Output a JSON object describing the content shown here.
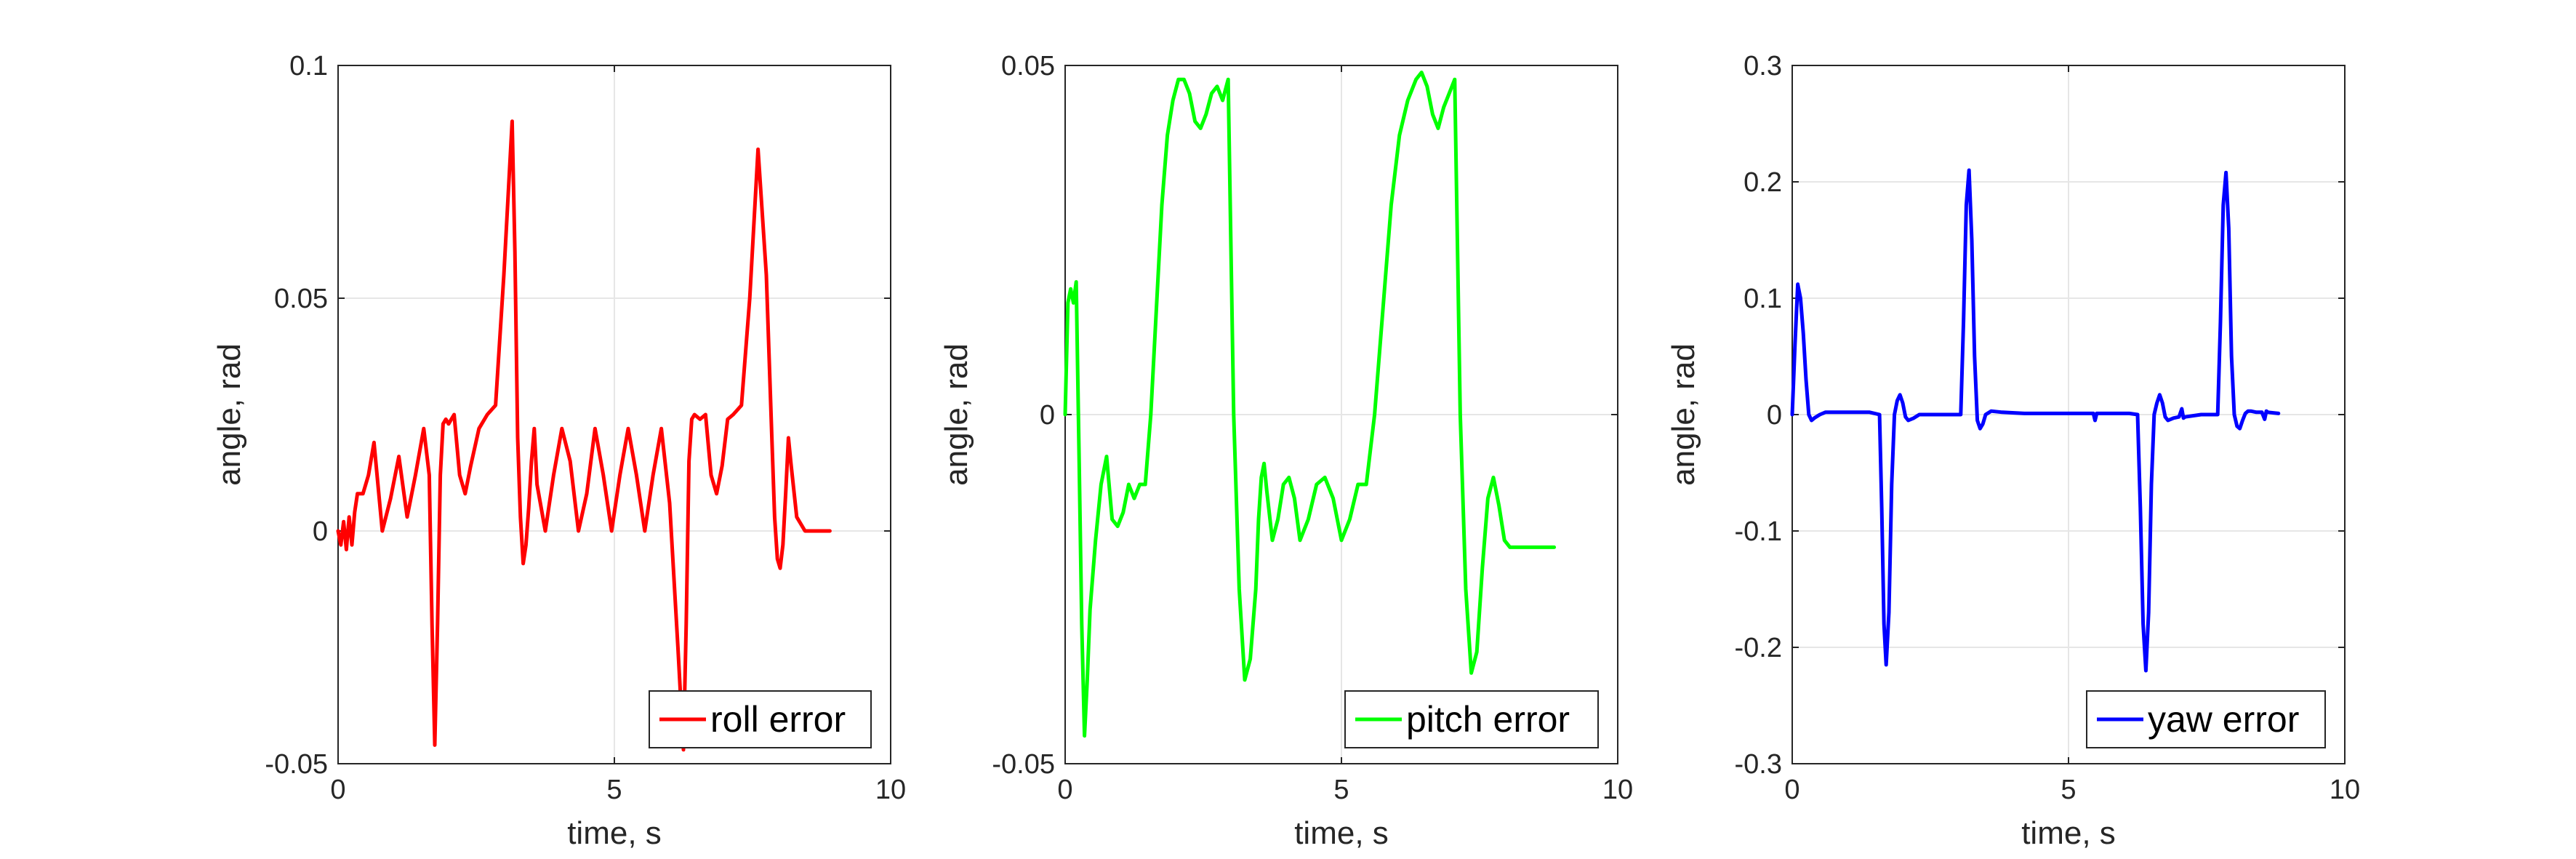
{
  "chart_data": [
    {
      "type": "line",
      "xlabel": "time, s",
      "ylabel": "angle, rad",
      "xlim": [
        0,
        10
      ],
      "ylim": [
        -0.05,
        0.1
      ],
      "xticks": [
        "0",
        "5",
        "10"
      ],
      "yticks": [
        "-0.05",
        "0",
        "0.05",
        "0.1"
      ],
      "ytick_values": [
        -0.05,
        0,
        0.05,
        0.1
      ],
      "grid": true,
      "legend_position": "bottom-right",
      "color": "#ff0000",
      "series": [
        {
          "name": "roll error",
          "x": [
            0,
            0.05,
            0.1,
            0.15,
            0.2,
            0.25,
            0.3,
            0.35,
            0.45,
            0.55,
            0.65,
            0.8,
            0.95,
            1.1,
            1.25,
            1.4,
            1.55,
            1.65,
            1.7,
            1.75,
            1.8,
            1.85,
            1.9,
            1.95,
            2.0,
            2.1,
            2.2,
            2.3,
            2.4,
            2.55,
            2.7,
            2.85,
            3.0,
            3.15,
            3.2,
            3.25,
            3.3,
            3.35,
            3.4,
            3.45,
            3.5,
            3.55,
            3.6,
            3.75,
            3.9,
            4.05,
            4.2,
            4.35,
            4.5,
            4.65,
            4.8,
            4.95,
            5.1,
            5.25,
            5.4,
            5.55,
            5.7,
            5.85,
            6.0,
            6.15,
            6.25,
            6.3,
            6.35,
            6.4,
            6.45,
            6.55,
            6.65,
            6.75,
            6.85,
            6.95,
            7.05,
            7.15,
            7.3,
            7.45,
            7.6,
            7.75,
            7.85,
            7.9,
            7.95,
            8.0,
            8.05,
            8.1,
            8.15,
            8.2,
            8.3,
            8.45,
            8.6,
            8.75,
            8.9
          ],
          "y": [
            0,
            -0.003,
            0.002,
            -0.004,
            0.003,
            -0.003,
            0.004,
            0.008,
            0.008,
            0.012,
            0.019,
            0.0,
            0.007,
            0.016,
            0.003,
            0.012,
            0.022,
            0.012,
            -0.02,
            -0.046,
            -0.02,
            0.012,
            0.023,
            0.024,
            0.023,
            0.025,
            0.012,
            0.008,
            0.014,
            0.022,
            0.025,
            0.027,
            0.055,
            0.088,
            0.06,
            0.02,
            0.003,
            -0.007,
            -0.003,
            0.005,
            0.015,
            0.022,
            0.01,
            0.0,
            0.012,
            0.022,
            0.015,
            0.0,
            0.008,
            0.022,
            0.012,
            0.0,
            0.012,
            0.022,
            0.012,
            0.0,
            0.012,
            0.022,
            0.006,
            -0.025,
            -0.047,
            -0.02,
            0.015,
            0.024,
            0.025,
            0.024,
            0.025,
            0.012,
            0.008,
            0.014,
            0.024,
            0.025,
            0.027,
            0.05,
            0.082,
            0.055,
            0.02,
            0.003,
            -0.006,
            -0.008,
            -0.003,
            0.008,
            0.02,
            0.014,
            0.003,
            0.0,
            0.0,
            0.0,
            0.0
          ]
        }
      ]
    },
    {
      "type": "line",
      "xlabel": "time, s",
      "ylabel": "angle, rad",
      "xlim": [
        0,
        10
      ],
      "ylim": [
        -0.05,
        0.05
      ],
      "xticks": [
        "0",
        "5",
        "10"
      ],
      "yticks": [
        "-0.05",
        "0",
        "0.05"
      ],
      "ytick_values": [
        -0.05,
        0,
        0.05
      ],
      "grid": true,
      "legend_position": "bottom-right",
      "color": "#00ff00",
      "series": [
        {
          "name": "pitch error",
          "x": [
            0,
            0.05,
            0.1,
            0.15,
            0.2,
            0.25,
            0.3,
            0.35,
            0.4,
            0.45,
            0.55,
            0.65,
            0.75,
            0.85,
            0.95,
            1.05,
            1.15,
            1.25,
            1.35,
            1.45,
            1.55,
            1.65,
            1.75,
            1.85,
            1.95,
            2.05,
            2.15,
            2.25,
            2.35,
            2.45,
            2.55,
            2.65,
            2.75,
            2.85,
            2.95,
            3.05,
            3.15,
            3.25,
            3.35,
            3.45,
            3.5,
            3.55,
            3.6,
            3.65,
            3.75,
            3.85,
            3.95,
            4.05,
            4.15,
            4.25,
            4.4,
            4.55,
            4.7,
            4.85,
            5.0,
            5.15,
            5.3,
            5.45,
            5.6,
            5.75,
            5.9,
            6.05,
            6.2,
            6.35,
            6.45,
            6.55,
            6.65,
            6.75,
            6.85,
            6.95,
            7.05,
            7.15,
            7.25,
            7.35,
            7.45,
            7.55,
            7.65,
            7.75,
            7.85,
            7.95,
            8.05,
            8.15,
            8.2,
            8.25,
            8.3,
            8.35,
            8.45,
            8.55,
            8.65,
            8.75,
            8.85
          ],
          "y": [
            0,
            0.016,
            0.018,
            0.016,
            0.019,
            -0.005,
            -0.03,
            -0.046,
            -0.038,
            -0.028,
            -0.018,
            -0.01,
            -0.006,
            -0.015,
            -0.016,
            -0.014,
            -0.01,
            -0.012,
            -0.01,
            -0.01,
            0.0,
            0.015,
            0.03,
            0.04,
            0.045,
            0.048,
            0.048,
            0.046,
            0.042,
            0.041,
            0.043,
            0.046,
            0.047,
            0.045,
            0.048,
            0.0,
            -0.025,
            -0.038,
            -0.035,
            -0.025,
            -0.015,
            -0.009,
            -0.007,
            -0.011,
            -0.018,
            -0.015,
            -0.01,
            -0.009,
            -0.012,
            -0.018,
            -0.015,
            -0.01,
            -0.009,
            -0.012,
            -0.018,
            -0.015,
            -0.01,
            -0.01,
            0.0,
            0.015,
            0.03,
            0.04,
            0.045,
            0.048,
            0.049,
            0.047,
            0.043,
            0.041,
            0.044,
            0.046,
            0.048,
            0.0,
            -0.025,
            -0.037,
            -0.034,
            -0.022,
            -0.012,
            -0.009,
            -0.013,
            -0.018,
            -0.019,
            -0.019,
            -0.019,
            -0.019,
            -0.019,
            -0.019,
            -0.019,
            -0.019,
            -0.019,
            -0.019,
            -0.019
          ]
        }
      ]
    },
    {
      "type": "line",
      "xlabel": "time, s",
      "ylabel": "angle, rad",
      "xlim": [
        0,
        10
      ],
      "ylim": [
        -0.3,
        0.3
      ],
      "xticks": [
        "0",
        "5",
        "10"
      ],
      "yticks": [
        "-0.3",
        "-0.2",
        "-0.1",
        "0",
        "0.1",
        "0.2",
        "0.3"
      ],
      "ytick_values": [
        -0.3,
        -0.2,
        -0.1,
        0,
        0.1,
        0.2,
        0.3
      ],
      "grid": true,
      "legend_position": "bottom-right",
      "color": "#0000ff",
      "series": [
        {
          "name": "yaw error",
          "x": [
            0,
            0.05,
            0.1,
            0.15,
            0.2,
            0.25,
            0.3,
            0.35,
            0.4,
            0.5,
            0.6,
            0.8,
            1.0,
            1.2,
            1.4,
            1.58,
            1.62,
            1.66,
            1.7,
            1.75,
            1.8,
            1.85,
            1.9,
            1.95,
            2.0,
            2.05,
            2.1,
            2.2,
            2.3,
            2.5,
            2.7,
            2.9,
            3.05,
            3.1,
            3.15,
            3.2,
            3.25,
            3.3,
            3.35,
            3.4,
            3.45,
            3.5,
            3.6,
            3.8,
            4.2,
            4.8,
            5.2,
            5.45,
            5.48,
            5.51,
            5.8,
            6.1,
            6.25,
            6.3,
            6.35,
            6.4,
            6.45,
            6.5,
            6.55,
            6.6,
            6.65,
            6.7,
            6.75,
            6.8,
            6.9,
            7.0,
            7.05,
            7.08,
            7.11,
            7.4,
            7.7,
            7.75,
            7.8,
            7.85,
            7.9,
            7.95,
            8.0,
            8.05,
            8.1,
            8.15,
            8.2,
            8.25,
            8.3,
            8.4,
            8.5,
            8.55,
            8.58,
            8.61,
            8.8
          ],
          "y": [
            0,
            0.06,
            0.112,
            0.1,
            0.07,
            0.03,
            0.0,
            -0.005,
            -0.003,
            0.0,
            0.002,
            0.002,
            0.002,
            0.002,
            0.002,
            0.0,
            -0.08,
            -0.18,
            -0.215,
            -0.17,
            -0.06,
            0.0,
            0.012,
            0.017,
            0.01,
            -0.002,
            -0.005,
            -0.003,
            0.0,
            0.0,
            0.0,
            0.0,
            0.0,
            0.08,
            0.18,
            0.21,
            0.15,
            0.05,
            -0.005,
            -0.012,
            -0.008,
            0.0,
            0.003,
            0.002,
            0.001,
            0.001,
            0.001,
            0.001,
            -0.005,
            0.001,
            0.001,
            0.001,
            0.0,
            -0.08,
            -0.18,
            -0.22,
            -0.17,
            -0.06,
            0.0,
            0.01,
            0.017,
            0.01,
            -0.002,
            -0.005,
            -0.003,
            -0.002,
            0.005,
            -0.003,
            -0.002,
            0.0,
            0.0,
            0.08,
            0.18,
            0.208,
            0.16,
            0.05,
            0.0,
            -0.01,
            -0.012,
            -0.005,
            0.001,
            0.003,
            0.003,
            0.002,
            0.002,
            -0.004,
            0.003,
            0.002,
            0.001
          ]
        }
      ]
    }
  ]
}
